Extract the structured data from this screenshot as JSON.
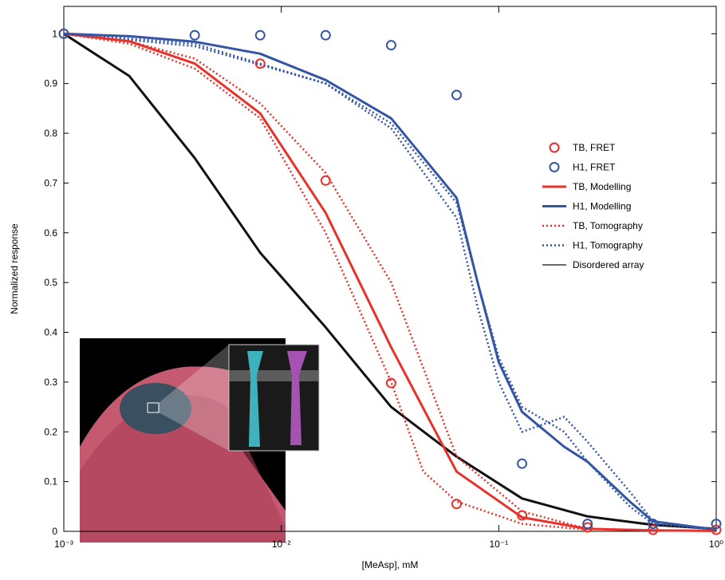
{
  "chart_data": {
    "type": "line",
    "xlabel": "[MeAsp], mM",
    "ylabel": "Normalized response",
    "xscale": "log",
    "xlim": [
      0.001,
      1
    ],
    "ylim": [
      0,
      1.055
    ],
    "xticks": [
      {
        "value": 0.001,
        "label": "10⁻³"
      },
      {
        "value": 0.01,
        "label": "10⁻²"
      },
      {
        "value": 0.1,
        "label": "10⁻¹"
      },
      {
        "value": 1,
        "label": "10⁰"
      }
    ],
    "yticks": [
      0,
      0.1,
      0.2,
      0.3,
      0.4,
      0.5,
      0.6,
      0.7,
      0.8,
      0.9,
      1
    ],
    "legend": "right",
    "series": [
      {
        "name": "TB, FRET",
        "color": "#e8312a",
        "style": "circle",
        "x": [
          0.001,
          0.008,
          0.016,
          0.032,
          0.064,
          0.128,
          0.256,
          0.512,
          1
        ],
        "values": [
          1,
          0.94,
          0.705,
          0.298,
          0.055,
          0.032,
          0.008,
          0.003,
          0.003
        ]
      },
      {
        "name": "H1, FRET",
        "color": "#3454a4",
        "style": "circle",
        "x": [
          0.001,
          0.004,
          0.008,
          0.016,
          0.032,
          0.064,
          0.128,
          0.256,
          0.512,
          1
        ],
        "values": [
          1,
          0.997,
          0.997,
          0.997,
          0.977,
          0.877,
          0.136,
          0.015,
          0.015,
          0.015
        ]
      },
      {
        "name": "TB, Modelling",
        "color": "#e8312a",
        "style": "solid",
        "x": [
          0.001,
          0.002,
          0.004,
          0.008,
          0.016,
          0.032,
          0.064,
          0.128,
          0.256,
          0.512,
          1
        ],
        "values": [
          1,
          0.985,
          0.94,
          0.84,
          0.64,
          0.37,
          0.12,
          0.028,
          0.005,
          0.002,
          0.001
        ]
      },
      {
        "name": "H1, Modelling",
        "color": "#3454a4",
        "style": "solid",
        "x": [
          0.001,
          0.002,
          0.004,
          0.008,
          0.016,
          0.032,
          0.064,
          0.08,
          0.1,
          0.128,
          0.2,
          0.256,
          0.4,
          0.512,
          1
        ],
        "values": [
          1,
          0.995,
          0.984,
          0.96,
          0.907,
          0.83,
          0.67,
          0.5,
          0.34,
          0.24,
          0.17,
          0.14,
          0.06,
          0.02,
          0.003
        ]
      },
      {
        "name": "TB, Tomography",
        "color": "#e8312a",
        "style": "dotted",
        "curves": [
          {
            "x": [
              0.001,
              0.002,
              0.004,
              0.008,
              0.016,
              0.032,
              0.045,
              0.064,
              0.128,
              0.256
            ],
            "values": [
              1,
              0.98,
              0.93,
              0.83,
              0.6,
              0.3,
              0.12,
              0.06,
              0.015,
              0.003
            ]
          },
          {
            "x": [
              0.001,
              0.002,
              0.004,
              0.008,
              0.016,
              0.032,
              0.064,
              0.128,
              0.256
            ],
            "values": [
              1,
              0.985,
              0.95,
              0.86,
              0.72,
              0.5,
              0.15,
              0.04,
              0.005
            ]
          }
        ]
      },
      {
        "name": "H1, Tomography",
        "color": "#3454a4",
        "style": "dotted",
        "curves": [
          {
            "x": [
              0.001,
              0.004,
              0.016,
              0.032,
              0.064,
              0.08,
              0.1,
              0.128,
              0.2,
              0.256,
              0.4,
              0.512,
              1
            ],
            "values": [
              1,
              0.98,
              0.9,
              0.82,
              0.66,
              0.5,
              0.35,
              0.25,
              0.2,
              0.14,
              0.05,
              0.015,
              0.003
            ]
          },
          {
            "x": [
              0.001,
              0.004,
              0.016,
              0.032,
              0.064,
              0.08,
              0.1,
              0.128,
              0.2,
              0.256,
              0.4,
              0.512,
              1
            ],
            "values": [
              1,
              0.975,
              0.9,
              0.81,
              0.63,
              0.45,
              0.3,
              0.2,
              0.23,
              0.18,
              0.08,
              0.02,
              0.004
            ]
          }
        ]
      },
      {
        "name": "Disordered array",
        "color": "#111111",
        "style": "thin",
        "x": [
          0.001,
          0.002,
          0.004,
          0.008,
          0.016,
          0.032,
          0.064,
          0.128,
          0.256,
          0.512,
          1
        ],
        "values": [
          1,
          0.915,
          0.75,
          0.56,
          0.41,
          0.25,
          0.15,
          0.066,
          0.03,
          0.013,
          0.005
        ]
      }
    ]
  }
}
